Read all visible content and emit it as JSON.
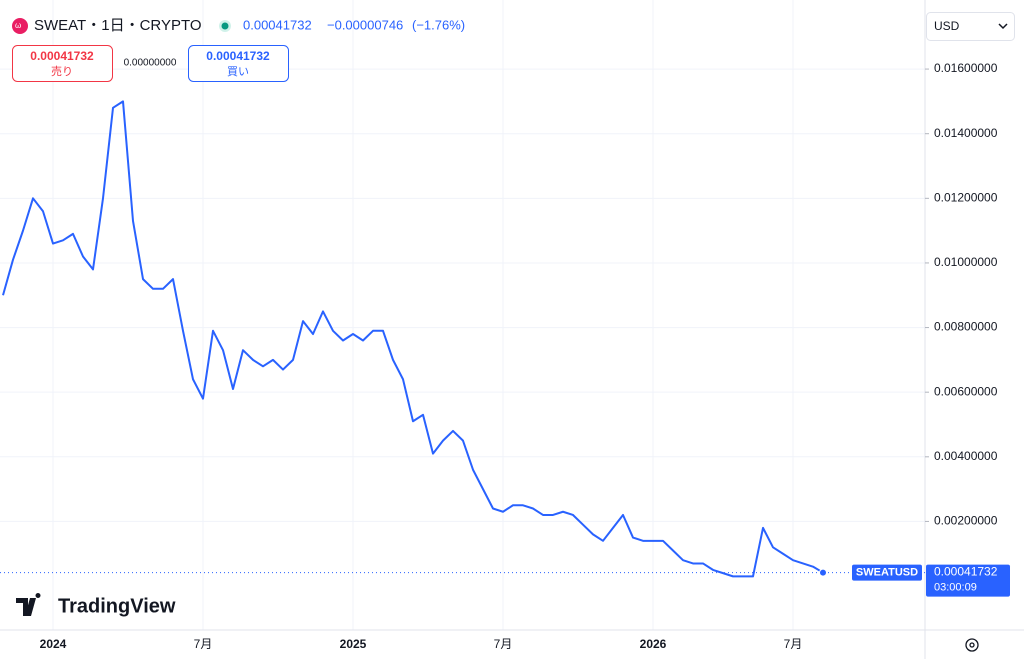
{
  "header": {
    "symbol": "SWEAT・1日・CRYPTO",
    "price": "0.00041732",
    "change": "−0.00000746",
    "change_pct": "(−1.76%)",
    "sell_price": "0.00041732",
    "sell_label": "売り",
    "spread": "0.00000000",
    "buy_price": "0.00041732",
    "buy_label": "買い",
    "currency": "USD",
    "countdown": "03:00:09",
    "brand": "TradingView"
  },
  "chart_data": {
    "type": "line",
    "categories": [
      null,
      null,
      null,
      null,
      null,
      "2024",
      null,
      null,
      null,
      null,
      null,
      null,
      null,
      null,
      null,
      null,
      null,
      null,
      null,
      null,
      "7月",
      null,
      null,
      null,
      null,
      null,
      null,
      null,
      null,
      null,
      null,
      null,
      null,
      null,
      null,
      "2025",
      null,
      null,
      null,
      null,
      null,
      null,
      null,
      null,
      null,
      null,
      null,
      null,
      null,
      null,
      "7月",
      null,
      null,
      null,
      null,
      null,
      null,
      null,
      null,
      null,
      null,
      null,
      null,
      null,
      null,
      "2026",
      null,
      null,
      null,
      null,
      null,
      null,
      null,
      null,
      null,
      null,
      null,
      null,
      null,
      "7月",
      null,
      null,
      null
    ],
    "series": [
      {
        "name": "SWEATUSD",
        "color": "#2962ff",
        "values": [
          0.009,
          0.0101,
          0.011,
          0.012,
          0.0116,
          0.0106,
          0.0107,
          0.0109,
          0.0102,
          0.0098,
          0.012,
          0.0148,
          0.015,
          0.0113,
          0.0095,
          0.0092,
          0.0092,
          0.0095,
          0.0079,
          0.0064,
          0.0058,
          0.0079,
          0.0073,
          0.0061,
          0.0073,
          0.007,
          0.0068,
          0.007,
          0.0067,
          0.007,
          0.0082,
          0.0078,
          0.0085,
          0.0079,
          0.0076,
          0.0078,
          0.0076,
          0.0079,
          0.0079,
          0.007,
          0.0064,
          0.0051,
          0.0053,
          0.0041,
          0.0045,
          0.0048,
          0.0045,
          0.0036,
          0.003,
          0.0024,
          0.0023,
          0.0025,
          0.0025,
          0.0024,
          0.0022,
          0.0022,
          0.0023,
          0.0022,
          0.0019,
          0.0016,
          0.0014,
          0.0018,
          0.0022,
          0.0015,
          0.0014,
          0.0014,
          0.0014,
          0.0011,
          0.0008,
          0.0007,
          0.0007,
          0.0005,
          0.0004,
          0.0003,
          0.0003,
          0.0003,
          0.0018,
          0.0012,
          0.001,
          0.0008,
          0.0007,
          0.0006,
          0.00041732
        ]
      }
    ],
    "ylim": [
      -0.00136,
      0.01789
    ],
    "yticks": [
      {
        "value": 0.002,
        "label": "0.00200000"
      },
      {
        "value": 0.004,
        "label": "0.00400000"
      },
      {
        "value": 0.006,
        "label": "0.00600000"
      },
      {
        "value": 0.008,
        "label": "0.00800000"
      },
      {
        "value": 0.01,
        "label": "0.01000000"
      },
      {
        "value": 0.012,
        "label": "0.01200000"
      },
      {
        "value": 0.014,
        "label": "0.01400000"
      },
      {
        "value": 0.016,
        "label": "0.01600000"
      }
    ],
    "grid": true
  }
}
